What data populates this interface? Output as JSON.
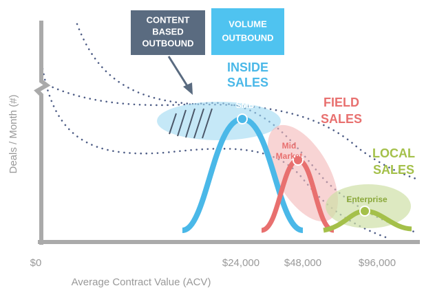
{
  "boxes": {
    "content_based": [
      "CONTENT",
      "BASED",
      "OUTBOUND"
    ],
    "volume": [
      "VOLUME",
      "OUTBOUND"
    ]
  },
  "segments": {
    "inside": {
      "title": [
        "INSIDE",
        "SALES"
      ],
      "point": [
        "SMB"
      ]
    },
    "field": {
      "title": [
        "FIELD",
        "SALES"
      ],
      "point": [
        "Mid",
        "Market"
      ]
    },
    "local": {
      "title": [
        "LOCAL",
        "SALES"
      ],
      "point": [
        "Enterprise"
      ]
    }
  },
  "axes": {
    "y_title": "Deals / Month (#)",
    "x_title": "Average Contract Value (ACV)",
    "x_labels": [
      "$0",
      "$24,000",
      "$48,000",
      "$96,000"
    ]
  }
}
